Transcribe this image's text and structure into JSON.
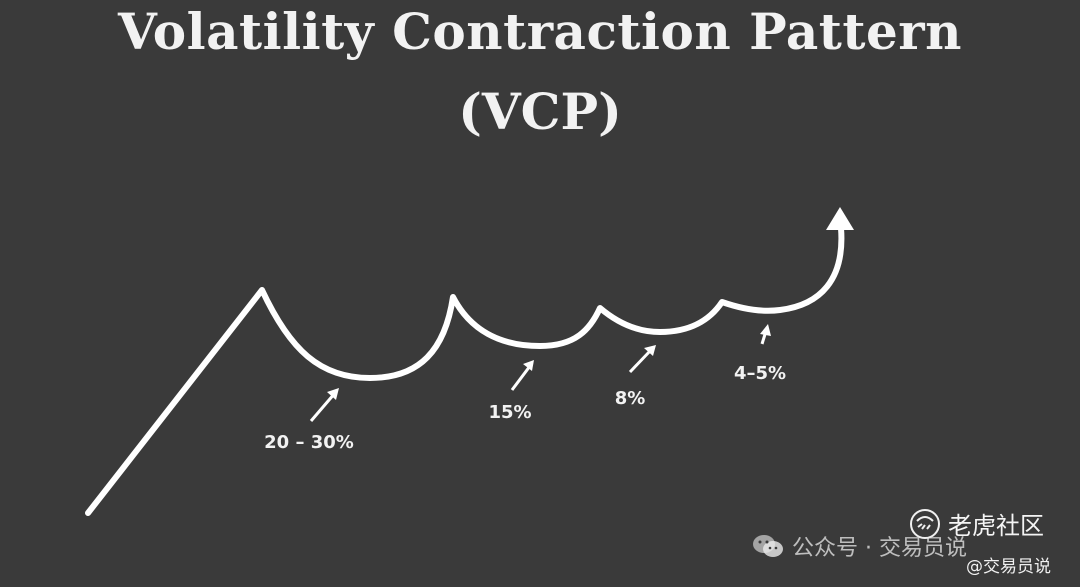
{
  "title": {
    "line1": "Volatility Contraction Pattern",
    "line2": "(VCP)"
  },
  "contractions": [
    {
      "label": "20 – 30%"
    },
    {
      "label": "15%"
    },
    {
      "label": "8%"
    },
    {
      "label": "4–5%"
    }
  ],
  "watermark": {
    "account": "公众号 · 交易员说",
    "brand": "老虎社区",
    "handle": "@交易员说"
  },
  "icons": {
    "wechat": "wechat-icon",
    "tiger": "tiger-community-icon",
    "arrow": "up-arrow-icon"
  },
  "colors": {
    "background": "#3a3a3a",
    "foreground": "#ffffff"
  }
}
